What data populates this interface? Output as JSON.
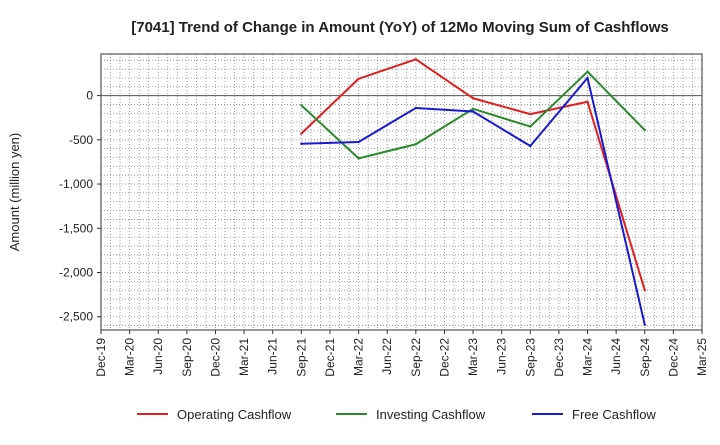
{
  "chart_data": {
    "type": "line",
    "title": "[7041]  Trend of Change in Amount (YoY) of 12Mo Moving Sum of Cashflows",
    "xlabel": "",
    "ylabel": "Amount (million yen)",
    "ylim": [
      -2650,
      470
    ],
    "yticks": [
      0,
      -500,
      -1000,
      -1500,
      -2000,
      -2500
    ],
    "ytick_labels": [
      "0",
      "-500",
      "-1,000",
      "-1,500",
      "-2,000",
      "-2,500"
    ],
    "categories": [
      "Dec-19",
      "Mar-20",
      "Jun-20",
      "Sep-20",
      "Dec-20",
      "Mar-21",
      "Jun-21",
      "Sep-21",
      "Dec-21",
      "Mar-22",
      "Jun-22",
      "Sep-22",
      "Dec-22",
      "Mar-23",
      "Jun-23",
      "Sep-23",
      "Dec-23",
      "Mar-24",
      "Jun-24",
      "Sep-24",
      "Dec-24",
      "Mar-25"
    ],
    "grid": true,
    "legend_position": "bottom",
    "series": [
      {
        "name": "Operating Cashflow",
        "color": "#e02020",
        "values": [
          null,
          null,
          null,
          null,
          null,
          null,
          null,
          -430,
          null,
          190,
          null,
          410,
          null,
          -30,
          null,
          -210,
          null,
          -70,
          null,
          -2200,
          null,
          null
        ]
      },
      {
        "name": "Investing Cashflow",
        "color": "#2a8a2a",
        "values": [
          null,
          null,
          null,
          null,
          null,
          null,
          null,
          -110,
          null,
          -710,
          null,
          -550,
          null,
          -150,
          null,
          -350,
          null,
          270,
          null,
          -390,
          null,
          null
        ]
      },
      {
        "name": "Free Cashflow",
        "color": "#1a1ad0",
        "values": [
          null,
          null,
          null,
          null,
          null,
          null,
          null,
          -545,
          null,
          -525,
          null,
          -140,
          null,
          -180,
          null,
          -570,
          null,
          200,
          null,
          -2590,
          null,
          null
        ]
      }
    ]
  }
}
